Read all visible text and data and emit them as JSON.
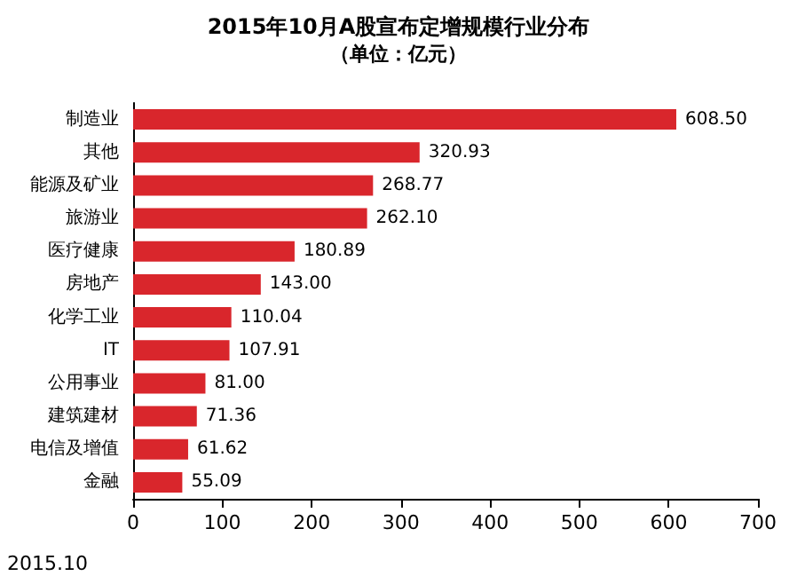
{
  "chart_data": {
    "type": "bar",
    "orientation": "horizontal",
    "title": "2015年10月A股宣布定增规模行业分布",
    "subtitle": "（单位：亿元）",
    "categories": [
      "制造业",
      "其他",
      "能源及矿业",
      "旅游业",
      "医疗健康",
      "房地产",
      "化学工业",
      "IT",
      "公用事业",
      "建筑建材",
      "电信及增值",
      "金融"
    ],
    "values": [
      608.5,
      320.93,
      268.77,
      262.1,
      180.89,
      143.0,
      110.04,
      107.91,
      81.0,
      71.36,
      61.62,
      55.09
    ],
    "value_labels": [
      "608.50",
      "320.93",
      "268.77",
      "262.10",
      "180.89",
      "143.00",
      "110.04",
      "107.91",
      "81.00",
      "71.36",
      "61.62",
      "55.09"
    ],
    "color": "#d9262c",
    "xlim": [
      0,
      700
    ],
    "xticks": [
      0,
      100,
      200,
      300,
      400,
      500,
      600,
      700
    ],
    "annotations": [
      "2015.10"
    ]
  }
}
